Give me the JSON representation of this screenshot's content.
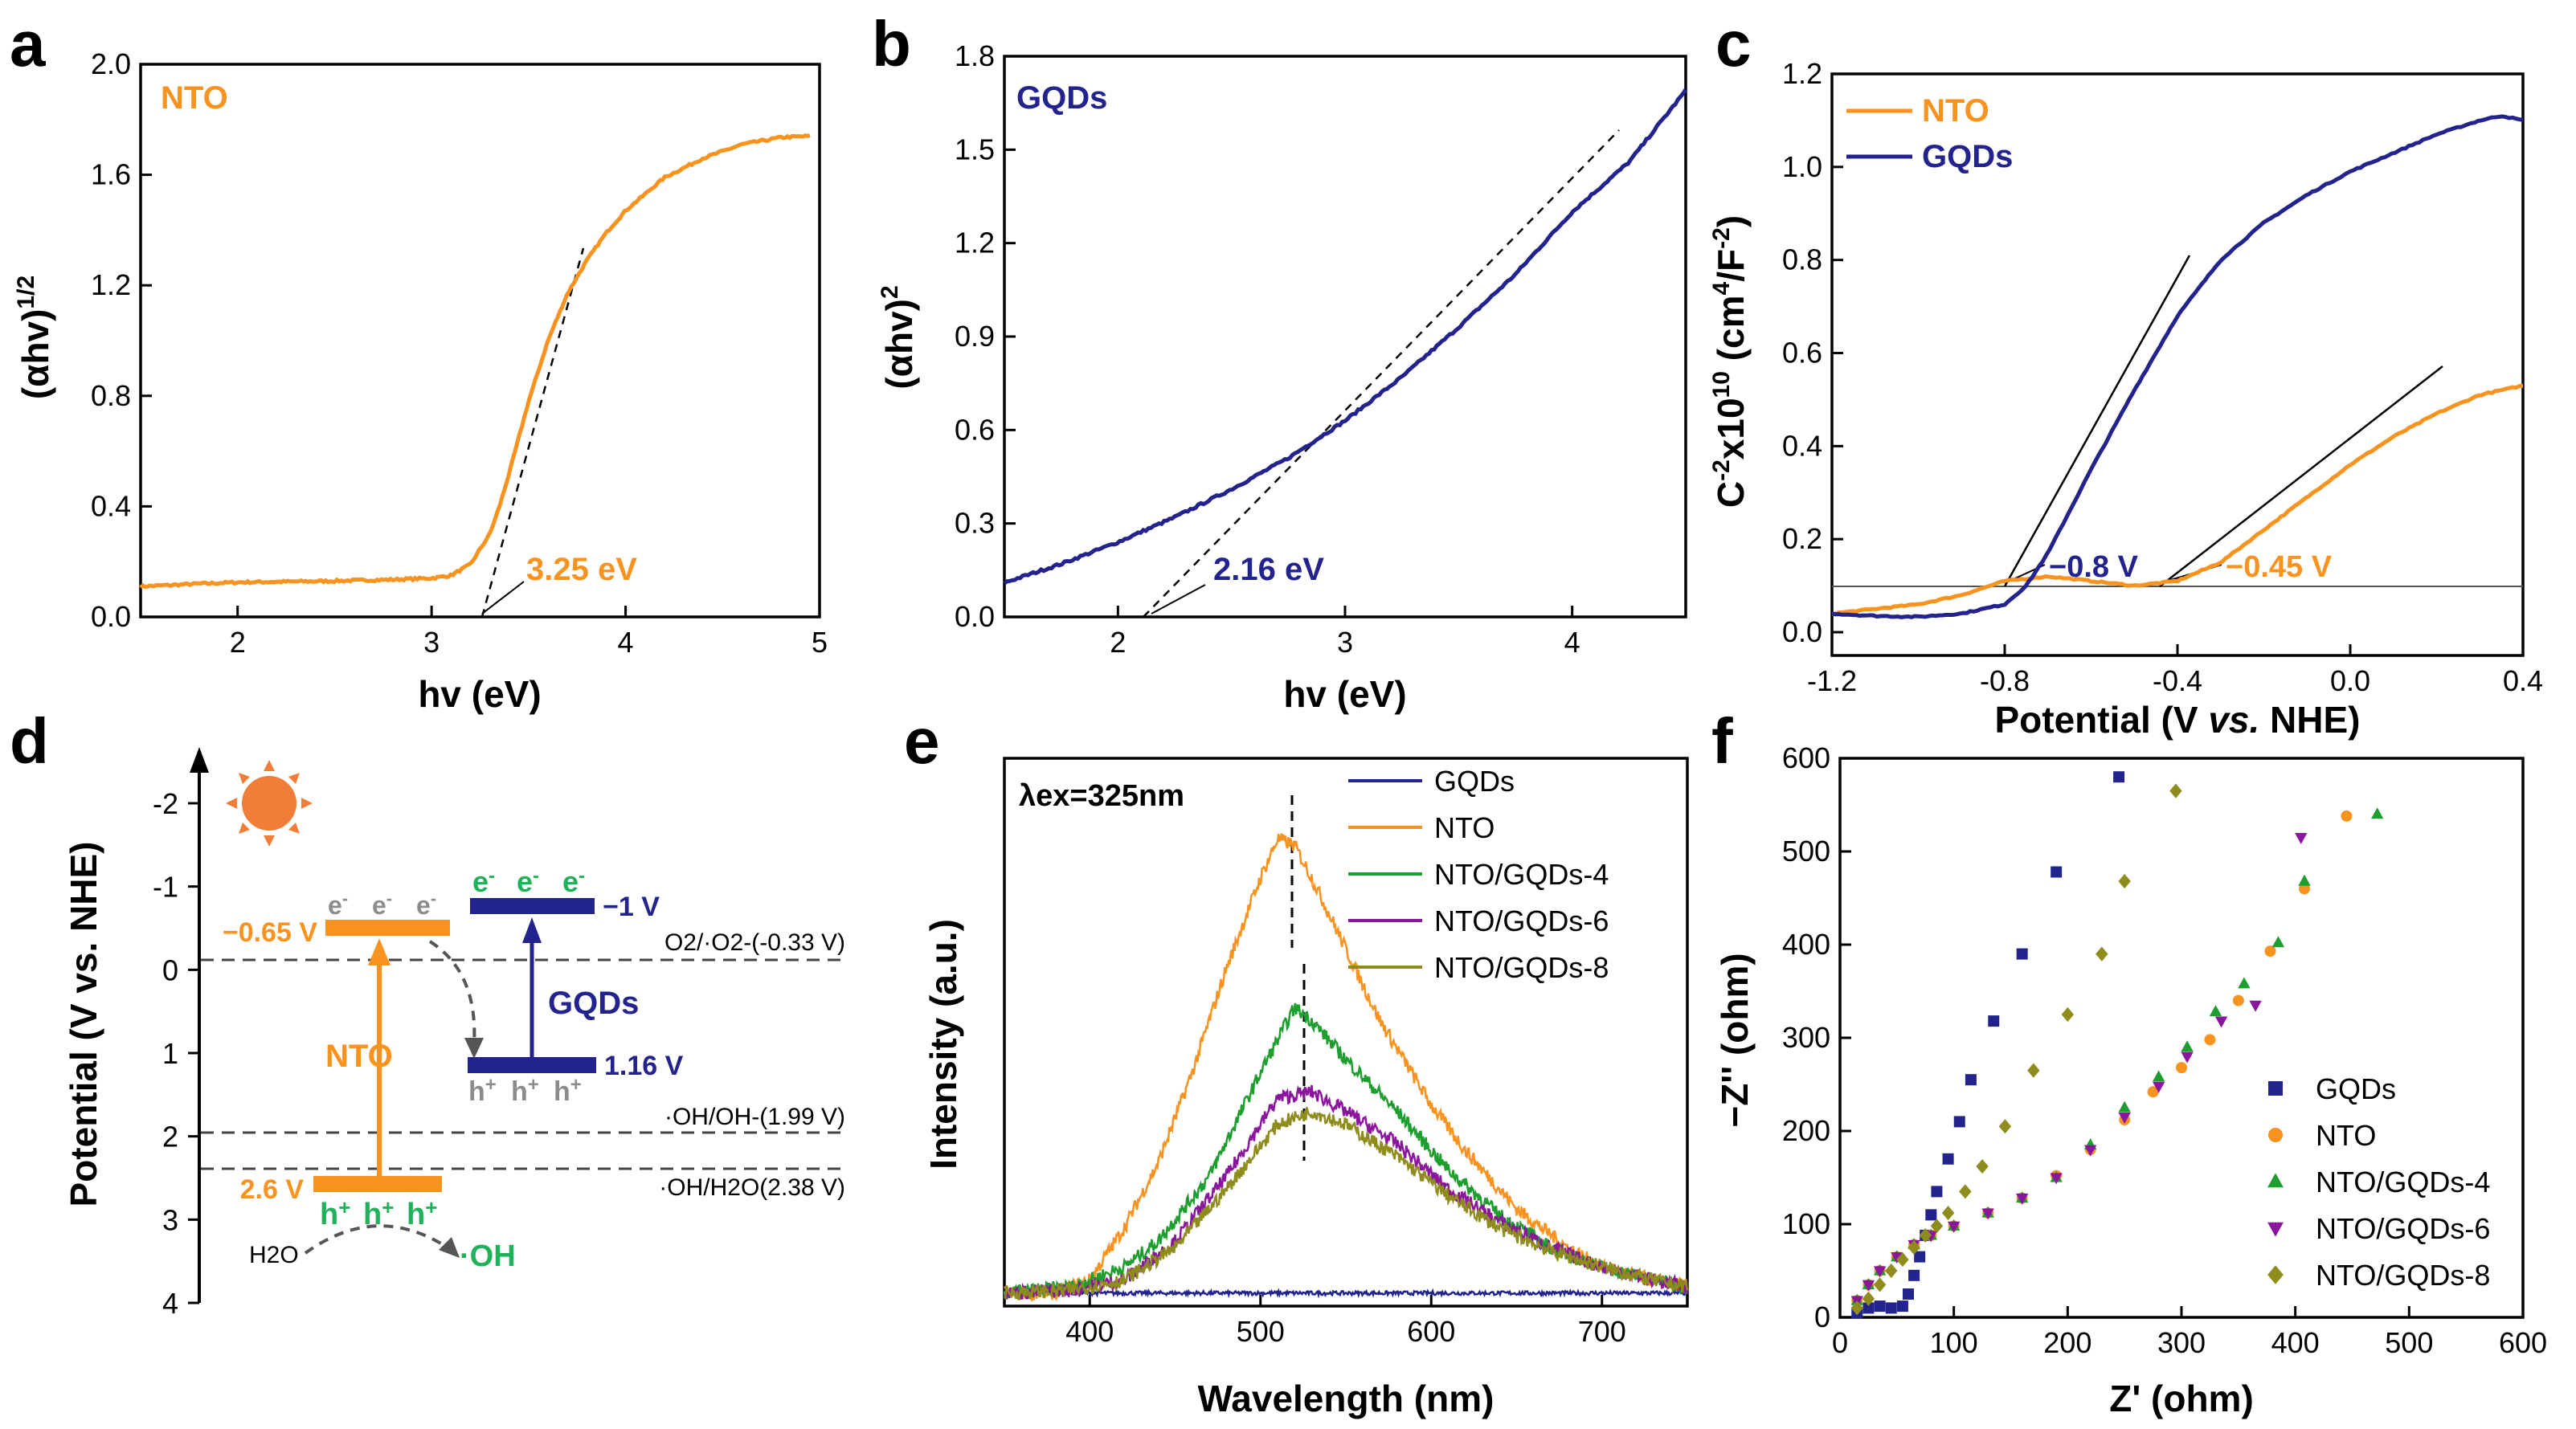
{
  "colors": {
    "nto": "#f7931e",
    "gqds": "#23238e",
    "nto_gqds_4": "#1e9e2e",
    "nto_gqds_6": "#8b169e",
    "nto_gqds_8": "#8f8c1e",
    "gray": "#8c8c8c",
    "green_text": "#1fb25a"
  },
  "chart_data": [
    {
      "panel": "a",
      "type": "line",
      "xlabel": "hv (eV)",
      "ylabel": "(αhv)",
      "ylabel_sup": "1/2",
      "xlim": [
        1.5,
        5.0
      ],
      "ylim": [
        0.0,
        2.0
      ],
      "xticks": [
        "2",
        "3",
        "4",
        "5"
      ],
      "yticks": [
        "0.0",
        "0.4",
        "0.8",
        "1.2",
        "1.6",
        "2.0"
      ],
      "series": [
        {
          "name": "NTO",
          "x": [
            1.5,
            1.8,
            2.0,
            2.5,
            2.8,
            3.0,
            3.1,
            3.2,
            3.3,
            3.35,
            3.4,
            3.5,
            3.6,
            3.7,
            3.8,
            3.9,
            4.0,
            4.2,
            4.4,
            4.6,
            4.8,
            4.95
          ],
          "y": [
            0.11,
            0.12,
            0.125,
            0.13,
            0.135,
            0.14,
            0.15,
            0.19,
            0.3,
            0.4,
            0.52,
            0.78,
            1.0,
            1.17,
            1.29,
            1.39,
            1.47,
            1.59,
            1.66,
            1.71,
            1.735,
            1.74
          ]
        }
      ],
      "label": "NTO",
      "annotation": "3.25 eV",
      "intercept": 3.25
    },
    {
      "panel": "b",
      "type": "line",
      "xlabel": "hv (eV)",
      "ylabel": "(αhv)",
      "ylabel_sup": "2",
      "xlim": [
        1.5,
        4.5
      ],
      "ylim": [
        0.0,
        1.8
      ],
      "xticks": [
        "2",
        "3",
        "4"
      ],
      "yticks": [
        "0.0",
        "0.3",
        "0.6",
        "0.9",
        "1.2",
        "1.5",
        "1.8"
      ],
      "series": [
        {
          "name": "GQDs",
          "x": [
            1.5,
            1.75,
            2.0,
            2.25,
            2.5,
            2.75,
            3.0,
            3.25,
            3.5,
            3.75,
            4.0,
            4.25,
            4.5
          ],
          "y": [
            0.11,
            0.17,
            0.24,
            0.32,
            0.41,
            0.51,
            0.63,
            0.77,
            0.93,
            1.1,
            1.3,
            1.46,
            1.69
          ]
        }
      ],
      "label": "GQDs",
      "annotation": "2.16 eV",
      "intercept": 2.16
    },
    {
      "panel": "c",
      "type": "line",
      "xlabel_pre": "Potential (V ",
      "xlabel_it": "vs.",
      "xlabel_post": " NHE)",
      "ylabel": "C",
      "ylabel_sup1": "-2",
      "ylabel_mid": "x10",
      "ylabel_sup2": "10",
      "ylabel_mid2": " (cm",
      "ylabel_sup3": "4",
      "ylabel_mid3": "/F",
      "ylabel_sup4": "-2",
      "ylabel_end": ")",
      "xlim": [
        -1.2,
        0.4
      ],
      "ylim": [
        -0.05,
        1.2
      ],
      "xticks": [
        "-1.2",
        "-0.8",
        "-0.4",
        "0.0",
        "0.4"
      ],
      "yticks": [
        "0.0",
        "0.2",
        "0.4",
        "0.6",
        "0.8",
        "1.0",
        "1.2"
      ],
      "series": [
        {
          "name": "NTO",
          "x": [
            -1.2,
            -1.0,
            -0.9,
            -0.8,
            -0.7,
            -0.6,
            -0.5,
            -0.4,
            -0.3,
            -0.2,
            -0.1,
            0.0,
            0.1,
            0.2,
            0.3,
            0.4
          ],
          "y": [
            0.04,
            0.06,
            0.08,
            0.11,
            0.12,
            0.11,
            0.1,
            0.11,
            0.15,
            0.22,
            0.29,
            0.36,
            0.42,
            0.47,
            0.51,
            0.53
          ]
        },
        {
          "name": "GQDs",
          "x": [
            -1.2,
            -1.1,
            -1.0,
            -0.9,
            -0.8,
            -0.75,
            -0.7,
            -0.6,
            -0.5,
            -0.4,
            -0.3,
            -0.2,
            -0.1,
            0.0,
            0.1,
            0.2,
            0.3,
            0.35,
            0.4
          ],
          "y": [
            0.04,
            0.035,
            0.033,
            0.04,
            0.06,
            0.1,
            0.17,
            0.35,
            0.52,
            0.68,
            0.8,
            0.88,
            0.94,
            0.99,
            1.03,
            1.07,
            1.1,
            1.11,
            1.1
          ]
        }
      ],
      "legend": [
        "NTO",
        "GQDs"
      ],
      "annotations": [
        "−0.8 V",
        "−0.45 V"
      ]
    },
    {
      "panel": "d",
      "type": "diagram",
      "ylabel": "Potential (V vs. NHE)",
      "ylim": [
        4.3,
        -2.6
      ],
      "yticks": [
        "-2",
        "-1",
        "0",
        "1",
        "2",
        "3",
        "4"
      ],
      "levels": {
        "nto_cb": "−0.65 V",
        "nto_vb": "2.6 V",
        "gqds_cb": "−1 V",
        "gqds_vb": "1.16 V"
      },
      "lines": [
        "O2/·O2-(-0.33 V)",
        "·OH/OH-(1.99 V)",
        "·OH/H2O(2.38 V)"
      ],
      "labels": {
        "nto": "NTO",
        "gqds": "GQDs",
        "electron": "e",
        "electron_sup": "-",
        "hole": "h",
        "hole_sup": "+",
        "h2o": "H2O",
        "oh": "·OH"
      }
    },
    {
      "panel": "e",
      "type": "line",
      "xlabel": "Wavelength (nm)",
      "ylabel": "Intensity (a.u.)",
      "xlim": [
        350,
        750
      ],
      "ylim": [
        0,
        1
      ],
      "xticks": [
        "400",
        "500",
        "600",
        "700"
      ],
      "annotation": "λex=325nm",
      "series": [
        {
          "name": "GQDs",
          "x": [
            350,
            400,
            500,
            600,
            700,
            750
          ],
          "y": [
            0.02,
            0.02,
            0.02,
            0.02,
            0.02,
            0.02
          ]
        },
        {
          "name": "NTO",
          "x": [
            350,
            380,
            400,
            420,
            440,
            460,
            480,
            500,
            510,
            520,
            530,
            550,
            570,
            600,
            620,
            650,
            680,
            700,
            730,
            750
          ],
          "y": [
            0.02,
            0.02,
            0.04,
            0.12,
            0.22,
            0.36,
            0.52,
            0.66,
            0.72,
            0.71,
            0.66,
            0.55,
            0.44,
            0.31,
            0.24,
            0.15,
            0.09,
            0.06,
            0.04,
            0.03
          ]
        },
        {
          "name": "NTO/GQDs-4",
          "x": [
            350,
            390,
            420,
            440,
            470,
            500,
            520,
            530,
            550,
            580,
            610,
            640,
            670,
            700,
            730,
            750
          ],
          "y": [
            0.02,
            0.03,
            0.06,
            0.1,
            0.2,
            0.36,
            0.46,
            0.44,
            0.38,
            0.3,
            0.21,
            0.14,
            0.09,
            0.06,
            0.04,
            0.03
          ]
        },
        {
          "name": "NTO/GQDs-6",
          "x": [
            350,
            390,
            420,
            450,
            480,
            510,
            530,
            550,
            580,
            610,
            640,
            670,
            700,
            730,
            750
          ],
          "y": [
            0.02,
            0.025,
            0.04,
            0.1,
            0.2,
            0.32,
            0.33,
            0.3,
            0.25,
            0.18,
            0.13,
            0.09,
            0.06,
            0.04,
            0.03
          ]
        },
        {
          "name": "NTO/GQDs-8",
          "x": [
            350,
            390,
            420,
            450,
            480,
            510,
            530,
            550,
            580,
            610,
            640,
            670,
            700,
            730,
            750
          ],
          "y": [
            0.02,
            0.025,
            0.04,
            0.09,
            0.18,
            0.28,
            0.3,
            0.28,
            0.23,
            0.17,
            0.12,
            0.085,
            0.06,
            0.04,
            0.03
          ]
        }
      ],
      "legend": [
        "GQDs",
        "NTO",
        "NTO/GQDs-4",
        "NTO/GQDs-6",
        "NTO/GQDs-8"
      ]
    },
    {
      "panel": "f",
      "type": "scatter",
      "xlabel": "Z' (ohm)",
      "ylabel": "−Z'' (ohm)",
      "xlim": [
        0,
        600
      ],
      "ylim": [
        0,
        600
      ],
      "xticks": [
        "0",
        "100",
        "200",
        "300",
        "400",
        "500",
        "600"
      ],
      "yticks": [
        "0",
        "100",
        "200",
        "300",
        "400",
        "500",
        "600"
      ],
      "series": [
        {
          "name": "GQDs",
          "marker": "square",
          "x": [
            15,
            25,
            35,
            45,
            55,
            60,
            65,
            70,
            75,
            80,
            85,
            95,
            105,
            115,
            135,
            160,
            190,
            245
          ],
          "y": [
            5,
            10,
            12,
            10,
            12,
            25,
            45,
            65,
            88,
            110,
            135,
            170,
            210,
            255,
            318,
            390,
            478,
            580
          ]
        },
        {
          "name": "NTO",
          "marker": "circle",
          "x": [
            15,
            25,
            35,
            50,
            65,
            80,
            100,
            130,
            160,
            190,
            220,
            250,
            275,
            300,
            325,
            350,
            378,
            408,
            445
          ],
          "y": [
            18,
            35,
            50,
            65,
            78,
            88,
            98,
            112,
            128,
            152,
            180,
            212,
            242,
            268,
            298,
            340,
            393,
            460,
            538
          ]
        },
        {
          "name": "NTO/GQDs-4",
          "marker": "triangle-up",
          "x": [
            15,
            25,
            35,
            50,
            65,
            80,
            100,
            130,
            160,
            190,
            220,
            250,
            280,
            305,
            330,
            355,
            385,
            408,
            472
          ],
          "y": [
            18,
            35,
            50,
            65,
            78,
            88,
            98,
            112,
            128,
            150,
            185,
            225,
            258,
            290,
            328,
            358,
            402,
            468,
            540
          ]
        },
        {
          "name": "NTO/GQDs-6",
          "marker": "triangle-down",
          "x": [
            15,
            25,
            35,
            50,
            65,
            80,
            100,
            130,
            160,
            190,
            220,
            250,
            280,
            305,
            335,
            365,
            405
          ],
          "y": [
            18,
            35,
            50,
            65,
            78,
            88,
            98,
            112,
            128,
            150,
            180,
            215,
            248,
            280,
            318,
            335,
            515
          ]
        },
        {
          "name": "NTO/GQDs-8",
          "marker": "diamond",
          "x": [
            15,
            25,
            35,
            45,
            55,
            65,
            75,
            85,
            95,
            110,
            125,
            145,
            170,
            200,
            230,
            250,
            295
          ],
          "y": [
            10,
            20,
            35,
            50,
            62,
            75,
            88,
            98,
            112,
            135,
            162,
            205,
            265,
            325,
            390,
            468,
            565
          ]
        }
      ],
      "legend": [
        "GQDs",
        "NTO",
        "NTO/GQDs-4",
        "NTO/GQDs-6",
        "NTO/GQDs-8"
      ]
    }
  ]
}
